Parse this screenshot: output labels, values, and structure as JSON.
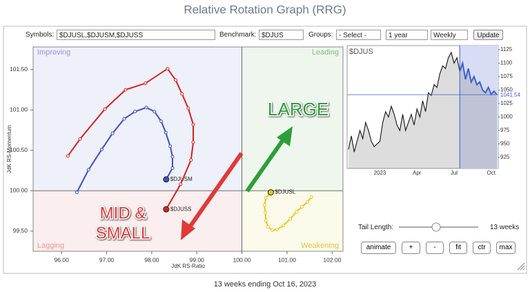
{
  "header": {
    "title": "Relative Rotation Graph (RRG)"
  },
  "controls": {
    "symbols_label": "Symbols:",
    "symbols": "$DJUSL,$DJUSM,$DJUSS",
    "benchmark_label": "Benchmark:",
    "benchmark": "$DJUS",
    "groups_label": "Groups:",
    "groups": "- Select -",
    "period": "1 year",
    "interval": "Weekly",
    "update": "Update",
    "tail_label": "Tail Length:",
    "tail_value": "13 weeks",
    "buttons": [
      "animate",
      "+",
      "-",
      "fit",
      "ctr",
      "max"
    ]
  },
  "chart_data": [
    {
      "type": "rrg",
      "x_label": "JdK RS-Ratio",
      "y_label": "JdK RS-Momentum",
      "center": [
        100,
        100
      ],
      "quadrants": [
        {
          "name": "Improving",
          "color": "#eef0fa",
          "text_color": "#8f97e0"
        },
        {
          "name": "Leading",
          "color": "#eef6ee",
          "text_color": "#7cc07c"
        },
        {
          "name": "Weakening",
          "color": "#fbfaeb",
          "text_color": "#e0c43a"
        },
        {
          "name": "Lagging",
          "color": "#fbeeee",
          "text_color": "#e89a9a"
        }
      ],
      "annotations": [
        {
          "text": "LARGE",
          "color": "#2e9e3a"
        },
        {
          "text": "MID &",
          "color": "#e03a3a"
        },
        {
          "text": "SMALL",
          "color": "#e03a3a"
        }
      ],
      "xlim": [
        95.37,
        102.24
      ],
      "ylim": [
        99.25,
        101.78
      ],
      "xticks": [
        {
          "value": 96,
          "label": "96.00"
        },
        {
          "value": 97,
          "label": "97.00"
        },
        {
          "value": 98,
          "label": "98.00"
        },
        {
          "value": 99,
          "label": "99.00"
        },
        {
          "value": 100,
          "label": "100.00"
        },
        {
          "value": 101,
          "label": "101.00"
        },
        {
          "value": 102,
          "label": "102.00"
        }
      ],
      "yticks": [
        {
          "value": 99.5,
          "label": "99.50"
        },
        {
          "value": 100,
          "label": "100.00"
        },
        {
          "value": 100.5,
          "label": "100.50"
        },
        {
          "value": 101,
          "label": "101.00"
        },
        {
          "value": 101.5,
          "label": "101.50"
        }
      ],
      "series": [
        {
          "name": "$DJUSL",
          "color": "#f0c419",
          "x": [
            101.54,
            101.45,
            101.33,
            101.21,
            101.07,
            100.92,
            100.78,
            100.67,
            100.58,
            100.53,
            100.52,
            100.5,
            100.53,
            100.64
          ],
          "values": [
            99.92,
            99.86,
            99.8,
            99.74,
            99.65,
            99.57,
            99.52,
            99.51,
            99.55,
            99.63,
            99.73,
            99.82,
            99.91,
            99.98
          ]
        },
        {
          "name": "$DJUSM",
          "color": "#3b4fc0",
          "x": [
            96.34,
            96.6,
            96.89,
            97.13,
            97.39,
            97.63,
            97.88,
            98.06,
            98.21,
            98.31,
            98.41,
            98.46,
            98.46,
            98.32
          ],
          "values": [
            99.98,
            100.26,
            100.51,
            100.71,
            100.89,
            100.98,
            101.03,
            100.98,
            100.86,
            100.72,
            100.55,
            100.42,
            100.28,
            100.14
          ]
        },
        {
          "name": "$DJUSS",
          "color": "#d62020",
          "x": [
            96.14,
            96.41,
            96.96,
            97.42,
            97.86,
            98.35,
            98.53,
            98.67,
            98.81,
            98.92,
            98.92,
            98.87,
            98.64,
            98.32
          ],
          "values": [
            100.43,
            100.64,
            101.01,
            101.25,
            101.33,
            101.51,
            101.37,
            101.2,
            101.02,
            100.82,
            100.6,
            100.38,
            100.08,
            99.77
          ]
        }
      ]
    },
    {
      "type": "price",
      "title": "$DJUS",
      "color": "#222222",
      "tail_color": "#3b5fd0",
      "categories": [
        null,
        null,
        null,
        null,
        null,
        null,
        null,
        null,
        null,
        null,
        null,
        "2023",
        null,
        null,
        null,
        null,
        null,
        null,
        null,
        null,
        null,
        null,
        null,
        null,
        "Apr",
        null,
        null,
        null,
        null,
        null,
        null,
        null,
        null,
        null,
        null,
        null,
        null,
        "Jul",
        null,
        null,
        null,
        null,
        null,
        null,
        null,
        null,
        null,
        null,
        null,
        null,
        "Oct",
        null,
        null
      ],
      "values": [
        940,
        965,
        935,
        955,
        975,
        960,
        990,
        975,
        955,
        945,
        950,
        955,
        990,
        1010,
        1000,
        1020,
        1005,
        985,
        975,
        1005,
        975,
        990,
        1005,
        985,
        1015,
        1000,
        1030,
        1010,
        1045,
        1040,
        1060,
        1055,
        1080,
        1095,
        1090,
        1110,
        1120,
        1100,
        1110,
        1085,
        1100,
        1070,
        1090,
        1065,
        1075,
        1060,
        1065,
        1050,
        1045,
        1055,
        1042,
        1048,
        1041.54
      ],
      "ylim": [
        904.6,
        1132.6
      ],
      "yticks": [
        925,
        950,
        975,
        1000,
        1025,
        1050,
        1075,
        1100,
        1125
      ]
    }
  ],
  "footer": "13 weeks ending Oct 16, 2023"
}
